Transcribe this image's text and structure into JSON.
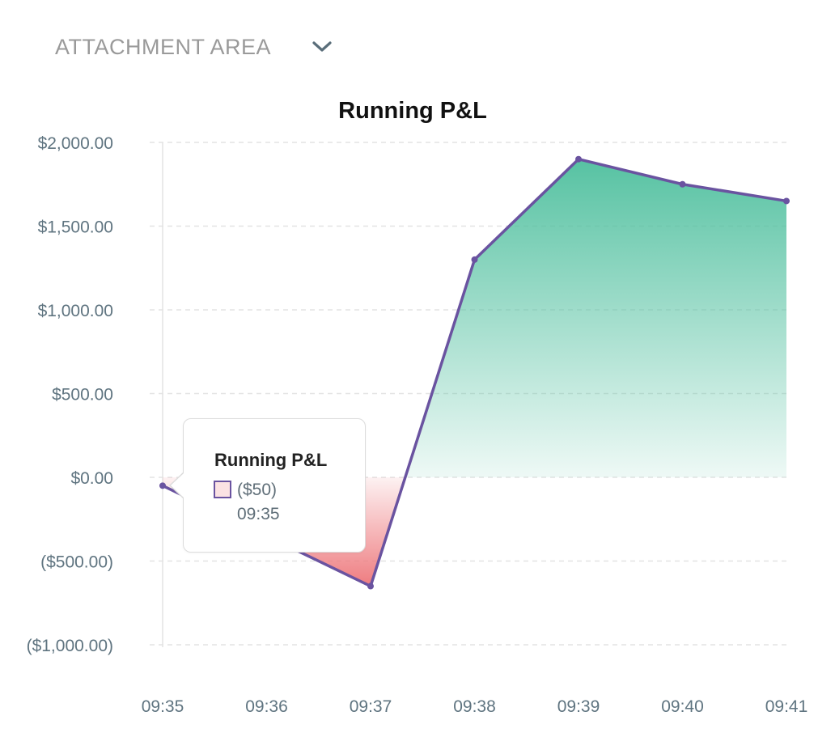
{
  "header": {
    "title": "ATTACHMENT AREA",
    "chevron_icon": "chevron-down-icon"
  },
  "chart_data": {
    "type": "area",
    "title": "Running P&L",
    "x": [
      "09:35",
      "09:36",
      "09:37",
      "09:38",
      "09:39",
      "09:40",
      "09:41"
    ],
    "series": [
      {
        "name": "Running P&L",
        "values": [
          -50,
          -350,
          -650,
          1300,
          1900,
          1750,
          1650
        ]
      }
    ],
    "ylim": [
      -1000,
      2000
    ],
    "yticks": [
      {
        "value": 2000,
        "label": "$2,000.00"
      },
      {
        "value": 1500,
        "label": "$1,500.00"
      },
      {
        "value": 1000,
        "label": "$1,000.00"
      },
      {
        "value": 500,
        "label": "$500.00"
      },
      {
        "value": 0,
        "label": "$0.00"
      },
      {
        "value": -500,
        "label": "($500.00)"
      },
      {
        "value": -1000,
        "label": "($1,000.00)"
      }
    ],
    "grid": true,
    "colors": {
      "line": "#6a53a0",
      "positive_fill": "#56c2a2",
      "negative_fill": "#ee7b7f",
      "grid": "#e3e3e3",
      "tick_text": "#5f7480"
    }
  },
  "tooltip": {
    "title": "Running P&L",
    "value": "($50)",
    "time": "09:35"
  }
}
